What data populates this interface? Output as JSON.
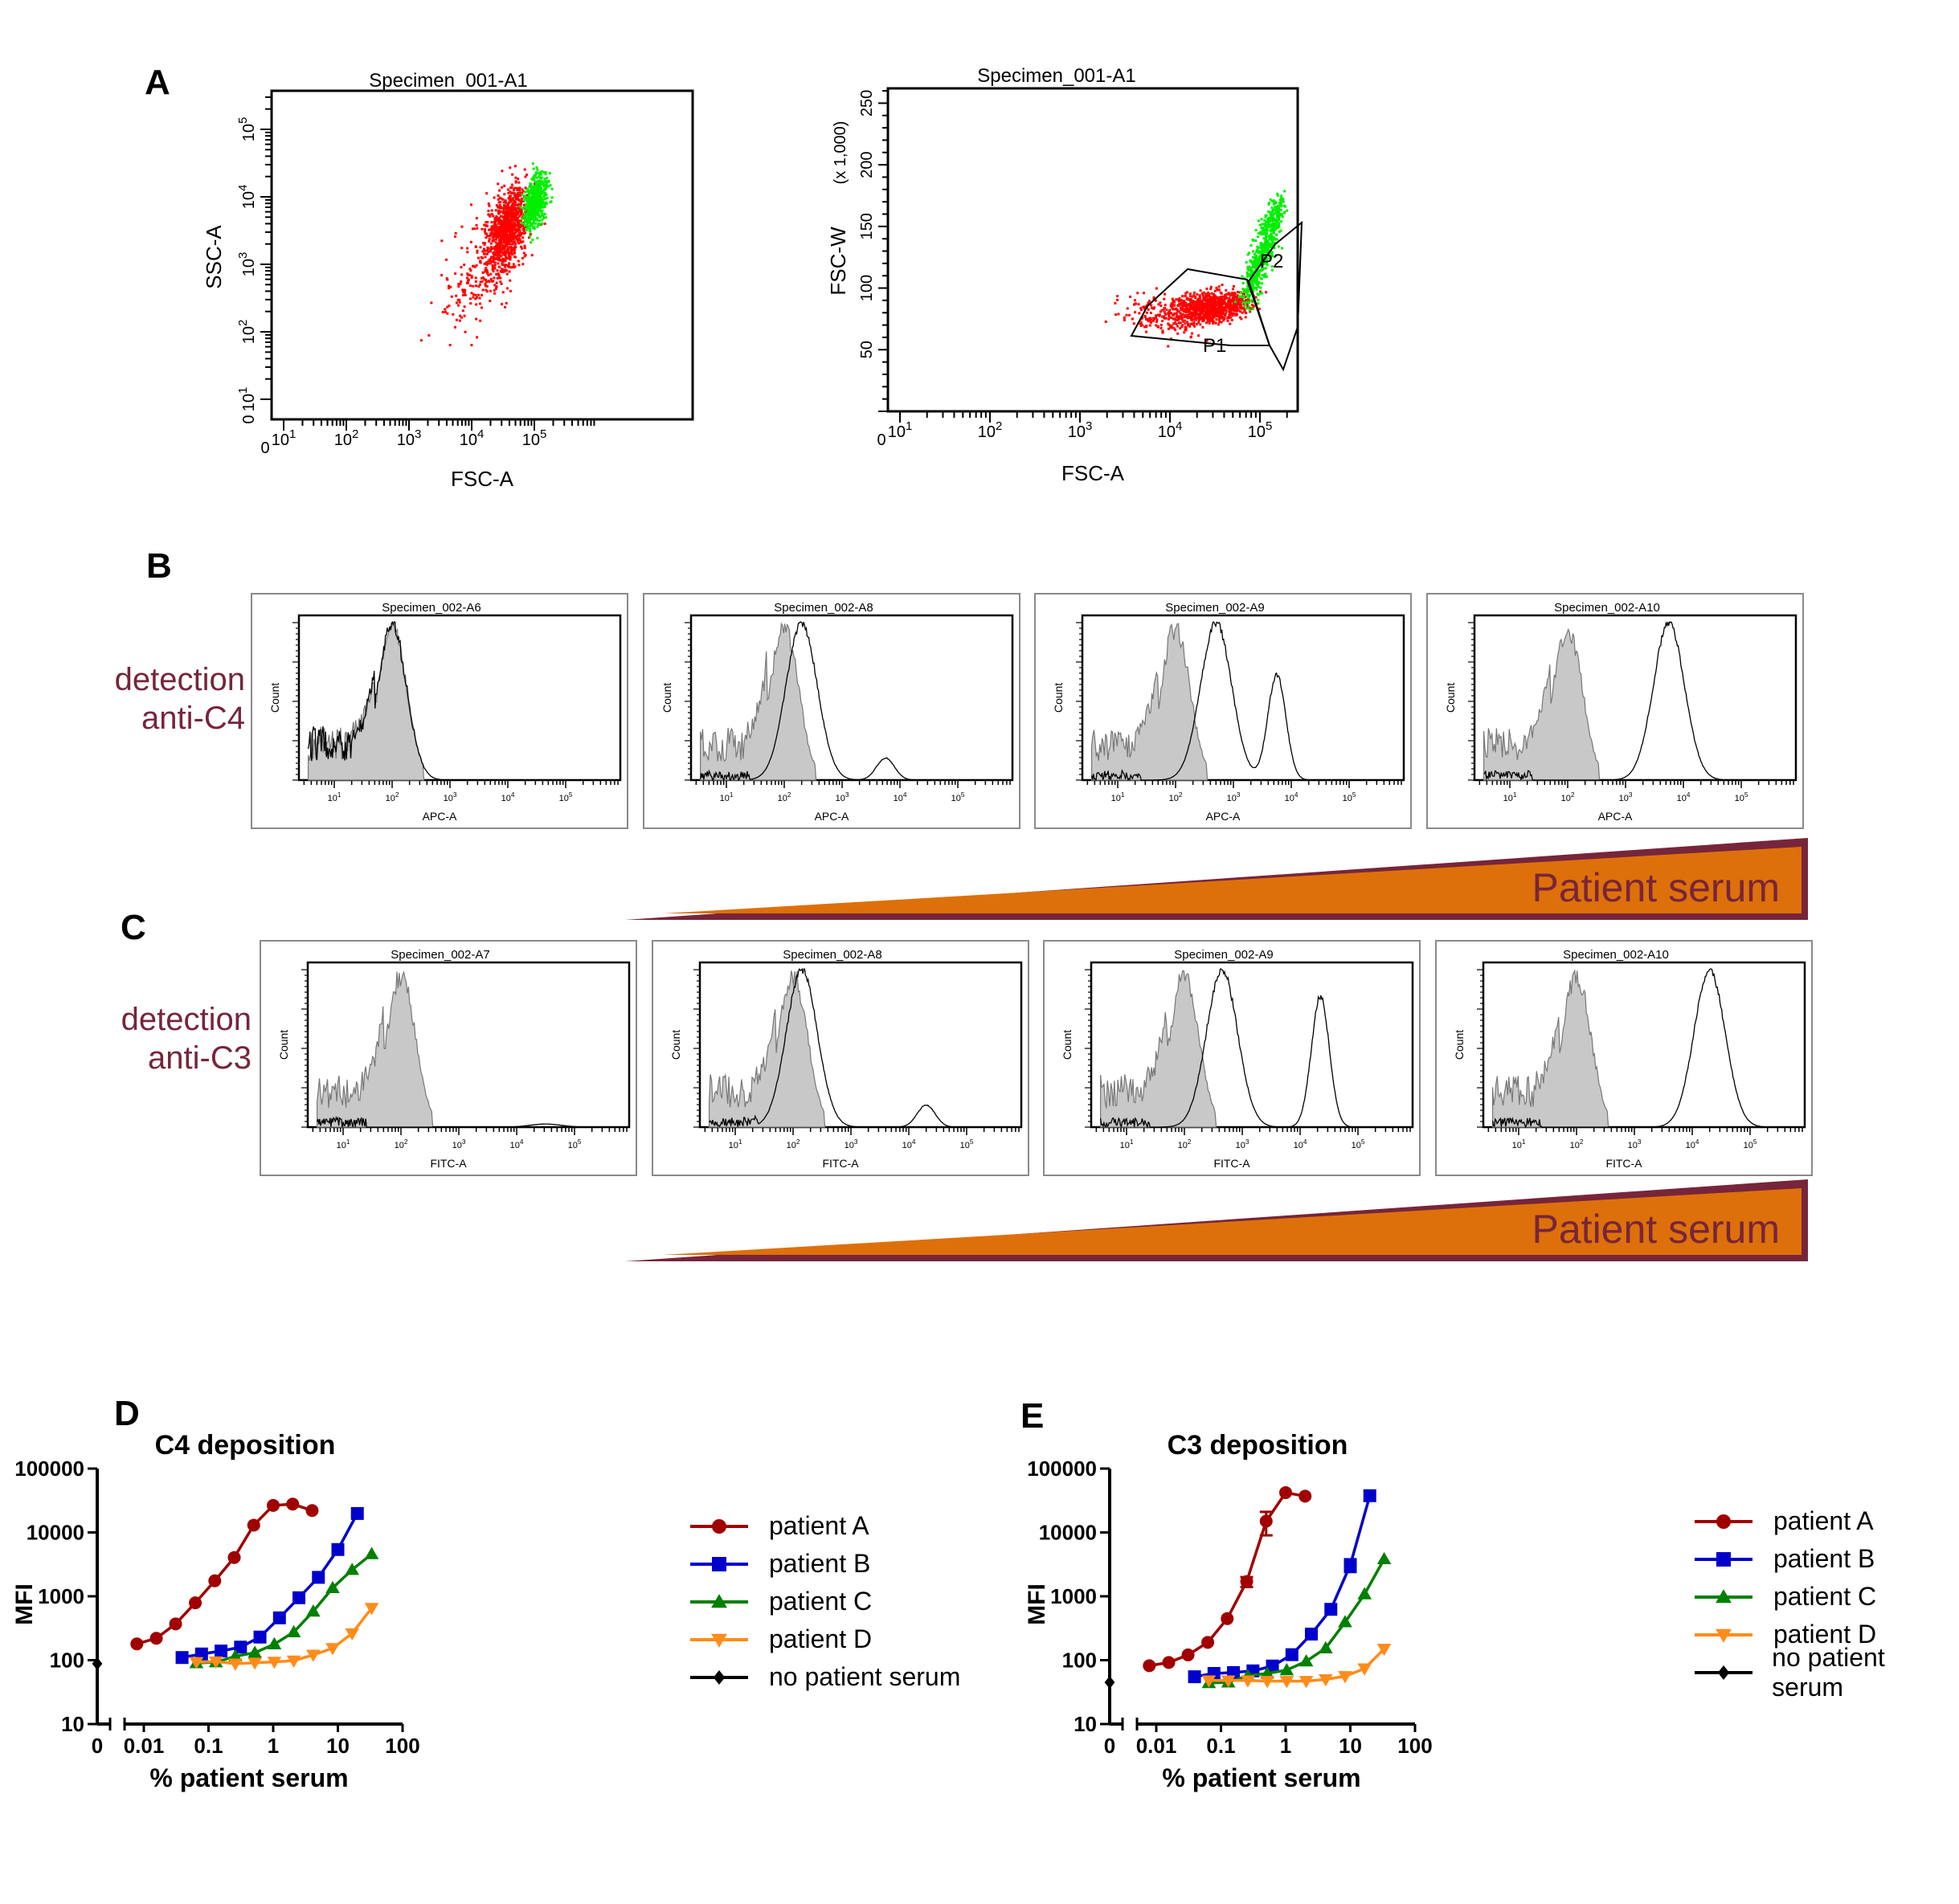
{
  "figure": {
    "panel_letters": [
      "A",
      "B",
      "C",
      "D",
      "E"
    ],
    "colors": {
      "flow_red": "#ff0000",
      "flow_green": "#00ee00",
      "gate_line": "#000000",
      "hist_fill": "#c8c8c8",
      "hist_fill_line": "#777777",
      "maroon": "#77253a",
      "orange": "#dd700a",
      "patient_A": "#a00000",
      "patient_B": "#0000cc",
      "patient_C": "#008000",
      "patient_D": "#ff8c1a",
      "no_serum": "#000000"
    }
  },
  "panelA": {
    "plots": [
      {
        "title": "Specimen_001-A1",
        "xlabel": "FSC-A",
        "ylabel": "SSC-A",
        "xticks": [
          "0",
          "10^1",
          "10^2",
          "10^3",
          "10^4",
          "10^5"
        ],
        "yticks": [
          "0",
          "10^1",
          "10^2",
          "10^3",
          "10^4",
          "10^5"
        ],
        "populations": [
          {
            "name": "red",
            "x_center_log": 4.65,
            "y_center_log": 3.6
          },
          {
            "name": "green",
            "x_center_log": 5.0,
            "y_center_log": 4.0
          }
        ]
      },
      {
        "title": "Specimen_001-A1",
        "xlabel": "FSC-A",
        "ylabel": "FSC-W",
        "ylabel_unit": "(x 1,000)",
        "xticks": [
          "0",
          "10^1",
          "10^2",
          "10^3",
          "10^4",
          "10^5"
        ],
        "yticks": [
          "50",
          "100",
          "150",
          "200",
          "250"
        ],
        "gates": [
          "P1",
          "P2"
        ]
      }
    ]
  },
  "panelB": {
    "side_label": [
      "detection",
      "anti-C4"
    ],
    "axis_label_x": "APC-A",
    "axis_label_y": "Count",
    "xticks": [
      "10^1",
      "10^2",
      "10^3",
      "10^4",
      "10^5"
    ],
    "histograms": [
      {
        "title": "Specimen_002-A6",
        "peaks_log": [],
        "peak_heights": []
      },
      {
        "title": "Specimen_002-A8",
        "peaks_log": [
          2.3,
          3.75
        ],
        "peak_heights": [
          1.0,
          0.14
        ]
      },
      {
        "title": "Specimen_002-A9",
        "peaks_log": [
          2.7,
          3.75
        ],
        "peak_heights": [
          1.0,
          0.67
        ]
      },
      {
        "title": "Specimen_002-A10",
        "peaks_log": [
          3.75
        ],
        "peak_heights": [
          1.0
        ]
      }
    ],
    "wedge_label": "Patient serum"
  },
  "panelC": {
    "side_label": [
      "detection",
      "anti-C3"
    ],
    "axis_label_x": "FITC-A",
    "axis_label_y": "Count",
    "xticks": [
      "10^1",
      "10^2",
      "10^3",
      "10^4",
      "10^5"
    ],
    "histograms": [
      {
        "title": "Specimen_002-A7",
        "peaks_log": [
          4.5
        ],
        "peak_heights": [
          0.02
        ]
      },
      {
        "title": "Specimen_002-A8",
        "peaks_log": [
          2.15,
          4.3
        ],
        "peak_heights": [
          1.0,
          0.14
        ]
      },
      {
        "title": "Specimen_002-A9",
        "peaks_log": [
          2.65,
          4.35
        ],
        "peak_heights": [
          1.0,
          0.83
        ]
      },
      {
        "title": "Specimen_002-A10",
        "peaks_log": [
          4.3
        ],
        "peak_heights": [
          1.0
        ]
      }
    ],
    "wedge_label": "Patient serum"
  },
  "chart_data": [
    {
      "type": "line",
      "panel": "D",
      "title": "C4 deposition",
      "xlabel": "% patient serum",
      "ylabel": "MFI",
      "xscale": "log",
      "yscale": "log",
      "xlim": [
        0.005,
        100
      ],
      "ylim": [
        10,
        100000
      ],
      "xticks": [
        "0",
        "0.01",
        "0.1",
        "1",
        "10",
        "100"
      ],
      "yticks": [
        "10",
        "100",
        "1000",
        "10000",
        "100000"
      ],
      "legend_position": "right",
      "series": [
        {
          "name": "patient A",
          "marker": "circle",
          "x": [
            0.0078,
            0.0156,
            0.031,
            0.0625,
            0.125,
            0.25,
            0.5,
            1,
            2,
            4
          ],
          "y": [
            180,
            220,
            370,
            790,
            1750,
            4050,
            13000,
            26500,
            27800,
            22000
          ]
        },
        {
          "name": "patient B",
          "marker": "square",
          "x": [
            0.039,
            0.078,
            0.156,
            0.3125,
            0.625,
            1.25,
            2.5,
            5,
            10,
            20
          ],
          "y": [
            110,
            125,
            139,
            160,
            230,
            460,
            950,
            1980,
            5400,
            19800
          ]
        },
        {
          "name": "patient C",
          "marker": "triangle-up",
          "x": [
            0.065,
            0.13,
            0.26,
            0.52,
            1.04,
            2.08,
            4.16,
            8.3,
            16.6,
            33.3
          ],
          "y": [
            90,
            93,
            115,
            131,
            178,
            275,
            580,
            1350,
            2600,
            4600
          ]
        },
        {
          "name": "patient D",
          "marker": "triangle-down",
          "x": [
            0.065,
            0.13,
            0.26,
            0.52,
            1.04,
            2.08,
            4.16,
            8.3,
            16.6,
            33.3
          ],
          "y": [
            93,
            95,
            88,
            91,
            94,
            98,
            121,
            154,
            262,
            655
          ]
        },
        {
          "name": "no patient serum",
          "marker": "diamond",
          "x": [
            0
          ],
          "y": [
            88
          ]
        }
      ]
    },
    {
      "type": "line",
      "panel": "E",
      "title": "C3 deposition",
      "xlabel": "% patient serum",
      "ylabel": "MFI",
      "xscale": "log",
      "yscale": "log",
      "xlim": [
        0.005,
        100
      ],
      "ylim": [
        10,
        100000
      ],
      "xticks": [
        "0",
        "0.01",
        "0.1",
        "1",
        "10",
        "100"
      ],
      "yticks": [
        "10",
        "100",
        "1000",
        "10000",
        "100000"
      ],
      "legend_position": "right",
      "series": [
        {
          "name": "patient A",
          "marker": "circle",
          "x": [
            0.0078,
            0.0156,
            0.031,
            0.0625,
            0.125,
            0.25,
            0.5,
            1,
            2
          ],
          "y": [
            82,
            92,
            121,
            190,
            447,
            1700,
            15000,
            42000,
            37000
          ],
          "error": [
            0,
            0,
            0,
            0,
            0,
            300,
            6000,
            0,
            0
          ]
        },
        {
          "name": "patient B",
          "marker": "square",
          "x": [
            0.039,
            0.078,
            0.156,
            0.3125,
            0.625,
            1.25,
            2.5,
            5,
            10,
            20
          ],
          "y": [
            55,
            62,
            64,
            68,
            81,
            122,
            256,
            625,
            3100,
            37600
          ],
          "error": [
            0,
            0,
            0,
            0,
            0,
            0,
            0,
            0,
            700,
            0
          ]
        },
        {
          "name": "patient C",
          "marker": "triangle-up",
          "x": [
            0.065,
            0.13,
            0.26,
            0.52,
            1.04,
            2.08,
            4.16,
            8.3,
            16.6,
            33.3
          ],
          "y": [
            44,
            45,
            57,
            62,
            70,
            96,
            154,
            394,
            1080,
            3830
          ]
        },
        {
          "name": "patient D",
          "marker": "triangle-down",
          "x": [
            0.065,
            0.13,
            0.26,
            0.52,
            1.04,
            2.08,
            4.16,
            8.3,
            16.6,
            33.3
          ],
          "y": [
            48,
            48,
            48,
            47,
            47,
            47,
            50,
            56,
            74,
            150
          ]
        },
        {
          "name": "no patient serum",
          "marker": "diamond",
          "x": [
            0
          ],
          "y": [
            45
          ]
        }
      ]
    }
  ]
}
